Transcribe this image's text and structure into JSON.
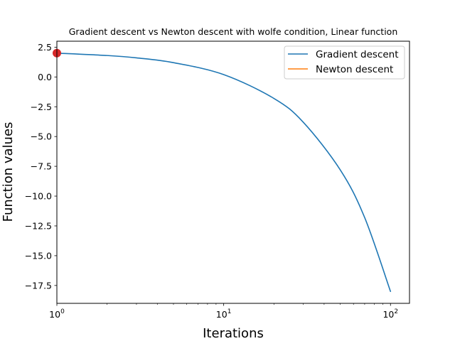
{
  "chart_data": {
    "type": "line",
    "title": "Gradient descent vs Newton descent with wolfe condition, Linear function",
    "xlabel": "Iterations",
    "ylabel": "Function values",
    "xscale": "log",
    "xlim": [
      1,
      130
    ],
    "ylim": [
      -19,
      3
    ],
    "xticks": [
      {
        "value": 1,
        "base": "10",
        "exp": "0"
      },
      {
        "value": 10,
        "base": "10",
        "exp": "1"
      },
      {
        "value": 100,
        "base": "10",
        "exp": "2"
      }
    ],
    "yticks": [
      2.5,
      0.0,
      -2.5,
      -5.0,
      -7.5,
      -10.0,
      -12.5,
      -15.0,
      -17.5
    ],
    "ytick_labels": [
      "2.5",
      "0.0",
      "−2.5",
      "−5.0",
      "−7.5",
      "−10.0",
      "−12.5",
      "−15.0",
      "−17.5"
    ],
    "legend_position": "upper right",
    "grid": false,
    "series": [
      {
        "name": "Gradient descent",
        "color": "#1f77b4",
        "x": [
          1,
          2,
          3,
          5,
          10,
          20,
          30,
          50,
          70,
          100
        ],
        "y": [
          2.0,
          1.8,
          1.6,
          1.2,
          0.2,
          -1.8,
          -3.8,
          -7.8,
          -11.8,
          -18.0
        ]
      },
      {
        "name": "Newton descent",
        "color": "#ff7f0e",
        "x": [
          1
        ],
        "y": [
          2.0
        ]
      }
    ],
    "markers": [
      {
        "x": 1,
        "y": 2.0,
        "color": "#d62728"
      }
    ]
  }
}
